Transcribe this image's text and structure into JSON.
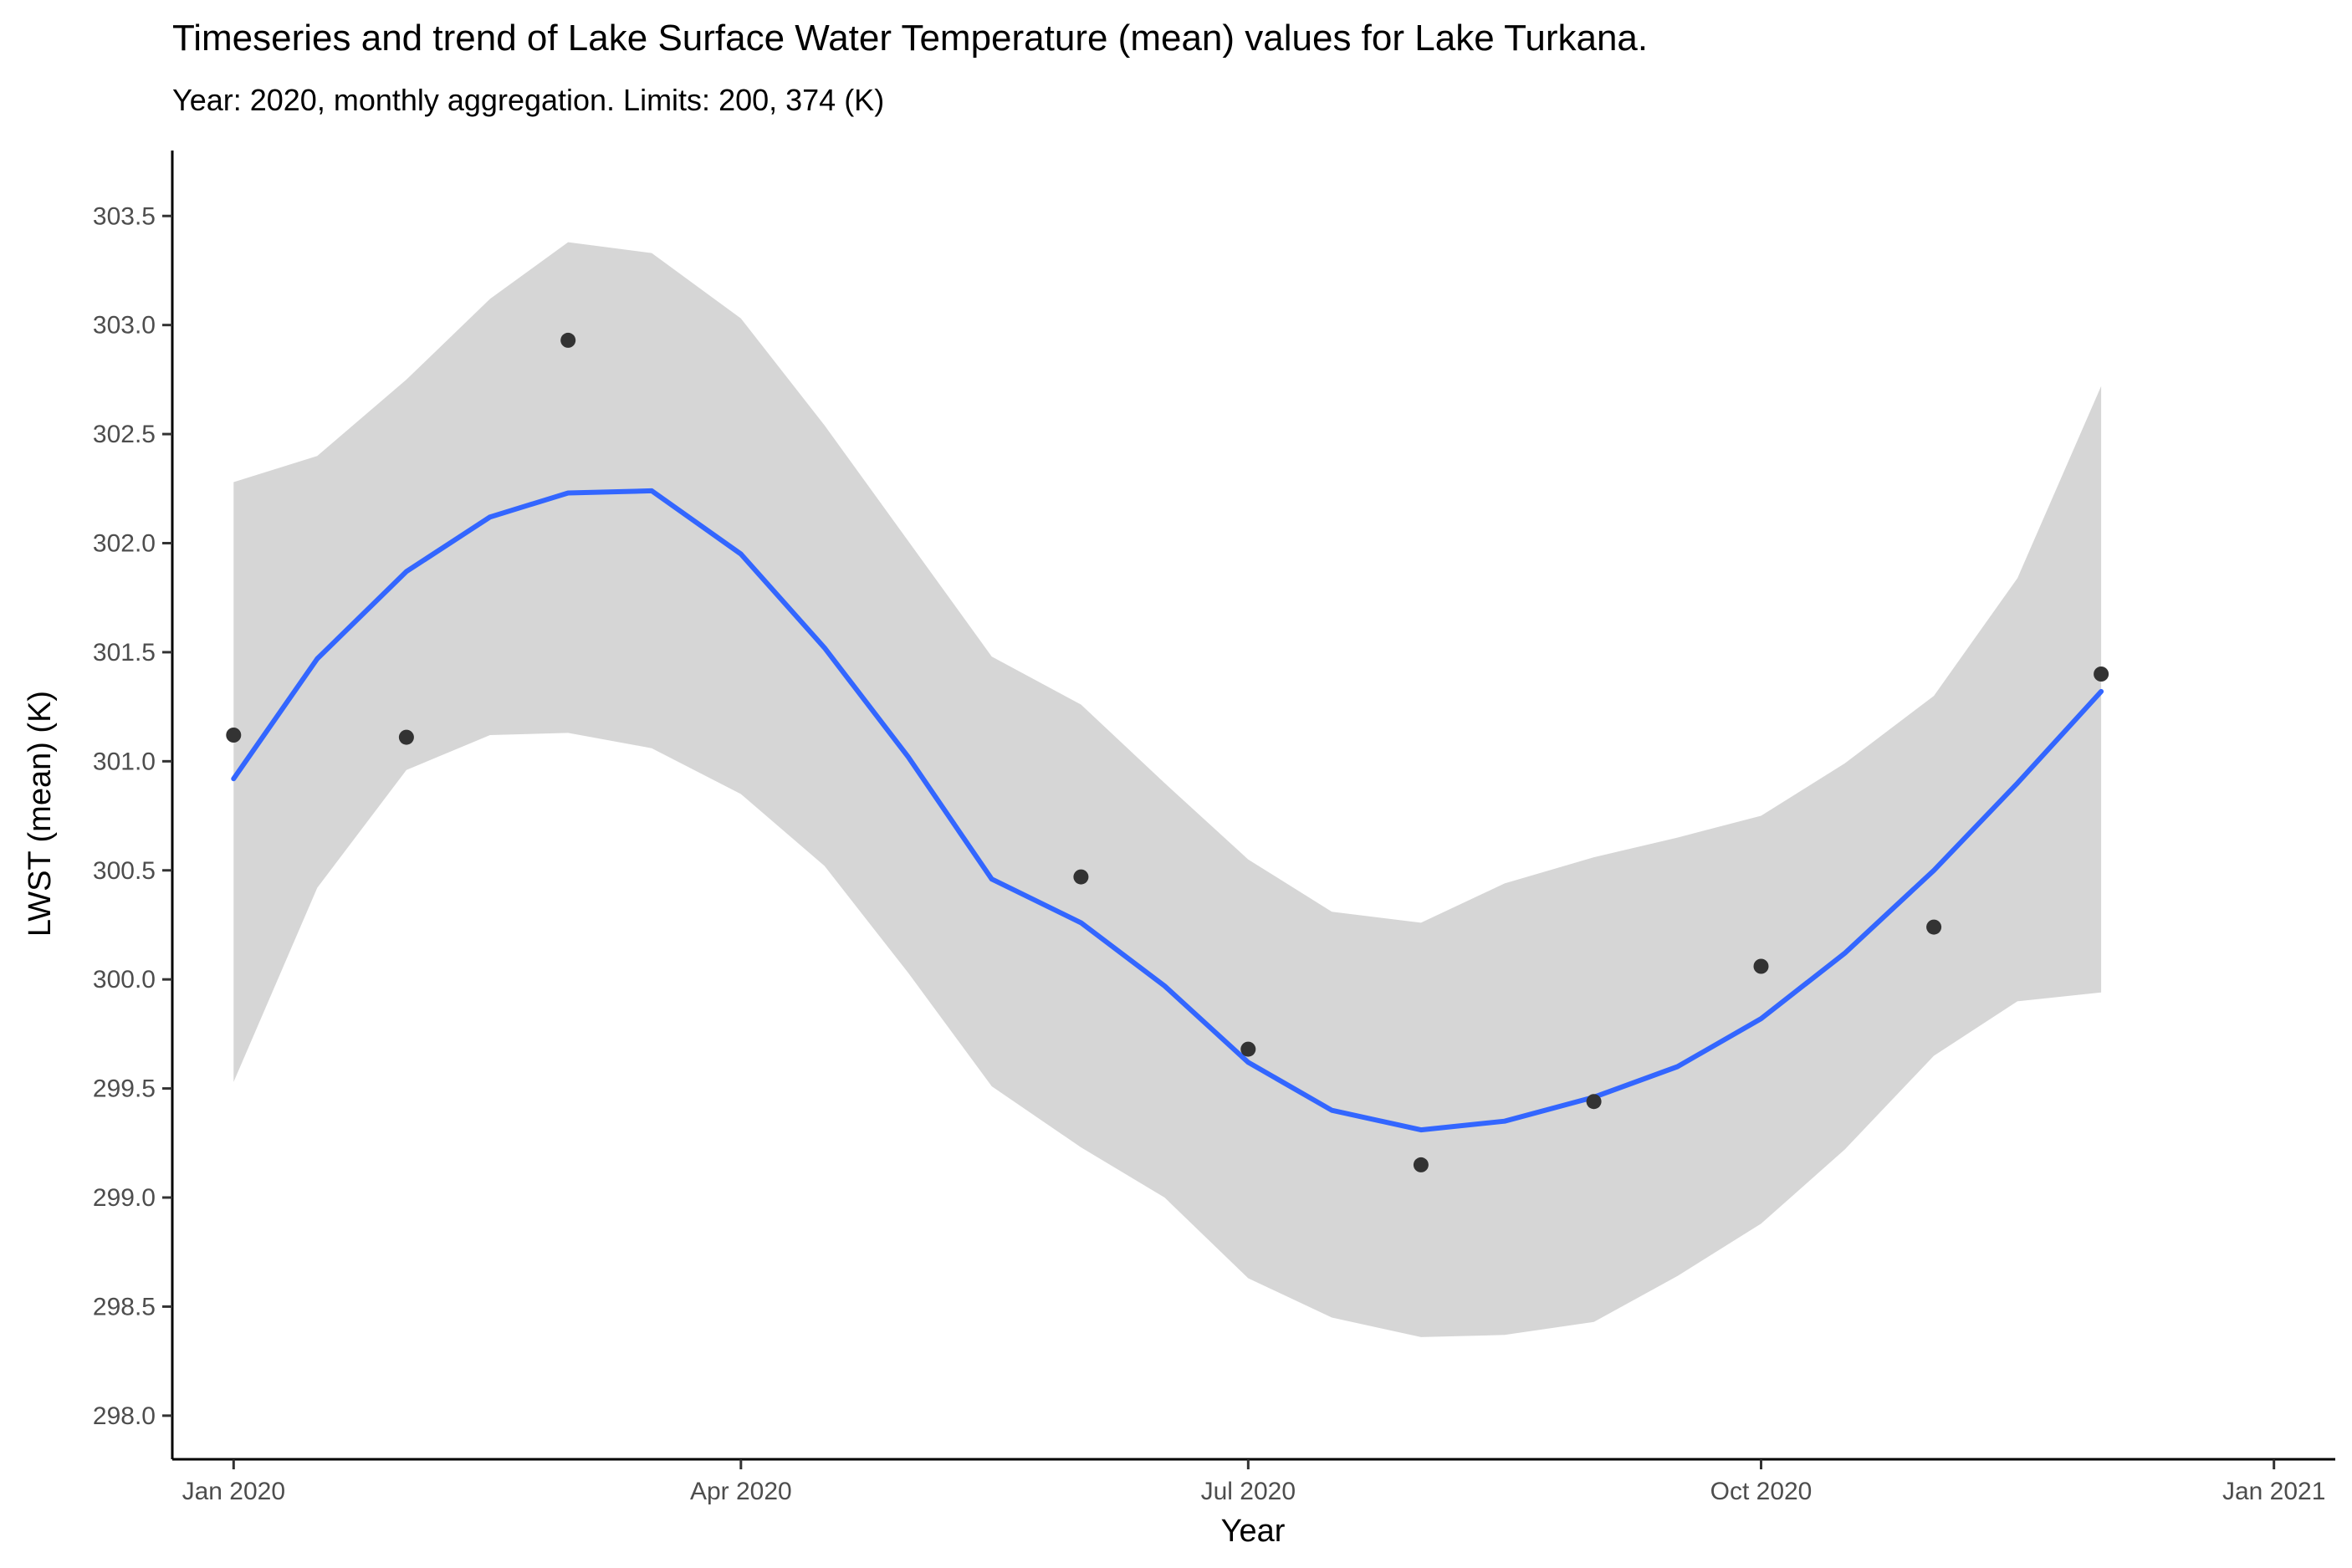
{
  "chart_data": {
    "type": "scatter",
    "title": "Timeseries and trend of Lake Surface Water Temperature (mean) values for Lake Turkana.",
    "subtitle": "Year: 2020, monthly aggregation. Limits: 200, 374 (K)",
    "xlabel": "Year",
    "ylabel": "LWST (mean) (K)",
    "xlim": [
      "2019-12-21",
      "2021-01-12"
    ],
    "ylim": [
      297.8,
      303.8
    ],
    "x_ticks": [
      {
        "date": "2020-01-01",
        "label": "Jan 2020"
      },
      {
        "date": "2020-04-01",
        "label": "Apr 2020"
      },
      {
        "date": "2020-07-01",
        "label": "Jul 2020"
      },
      {
        "date": "2020-10-01",
        "label": "Oct 2020"
      },
      {
        "date": "2021-01-01",
        "label": "Jan 2021"
      }
    ],
    "y_ticks": [
      298.0,
      298.5,
      299.0,
      299.5,
      300.0,
      300.5,
      301.0,
      301.5,
      302.0,
      302.5,
      303.0,
      303.5
    ],
    "y_tick_labels": [
      "298.0",
      "298.5",
      "299.0",
      "299.5",
      "300.0",
      "300.5",
      "301.0",
      "301.5",
      "302.0",
      "302.5",
      "303.0",
      "303.5"
    ],
    "grid": false,
    "legend": "none",
    "series": [
      {
        "kind": "points",
        "color": "#333333",
        "x": [
          "2020-01-01",
          "2020-02-01",
          "2020-03-01",
          "2020-06-01",
          "2020-07-01",
          "2020-08-01",
          "2020-09-01",
          "2020-10-01",
          "2020-11-01",
          "2020-12-01"
        ],
        "y": [
          301.12,
          301.11,
          302.93,
          300.47,
          299.68,
          299.15,
          299.44,
          300.06,
          300.24,
          301.4
        ]
      },
      {
        "kind": "trend",
        "color": "#3366ff",
        "band_color": "#d6d6d6",
        "x": [
          "2020-01-01",
          "2020-01-16",
          "2020-02-01",
          "2020-02-16",
          "2020-03-01",
          "2020-03-16",
          "2020-04-01",
          "2020-04-16",
          "2020-05-01",
          "2020-05-16",
          "2020-06-01",
          "2020-06-16",
          "2020-07-01",
          "2020-07-16",
          "2020-08-01",
          "2020-08-16",
          "2020-09-01",
          "2020-09-16",
          "2020-10-01",
          "2020-10-16",
          "2020-11-01",
          "2020-11-16",
          "2020-12-01"
        ],
        "y": [
          300.92,
          301.47,
          301.87,
          302.12,
          302.23,
          302.24,
          301.95,
          301.52,
          301.02,
          300.46,
          300.26,
          299.97,
          299.62,
          299.4,
          299.31,
          299.35,
          299.46,
          299.6,
          299.82,
          300.12,
          300.5,
          300.9,
          301.32
        ],
        "lower": [
          299.53,
          300.42,
          300.96,
          301.12,
          301.13,
          301.06,
          300.85,
          300.52,
          300.03,
          299.51,
          299.23,
          299.0,
          298.63,
          298.45,
          298.36,
          298.37,
          298.43,
          298.64,
          298.88,
          299.22,
          299.65,
          299.9,
          299.94
        ],
        "upper": [
          302.28,
          302.4,
          302.75,
          303.12,
          303.38,
          303.33,
          303.03,
          302.54,
          302.01,
          301.48,
          301.26,
          300.9,
          300.55,
          300.31,
          300.26,
          300.44,
          300.56,
          300.65,
          300.75,
          300.99,
          301.3,
          301.84,
          302.72
        ]
      }
    ]
  }
}
